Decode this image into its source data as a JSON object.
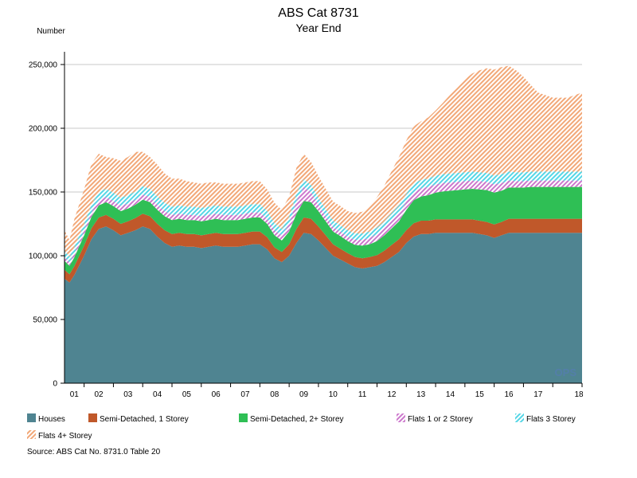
{
  "chart_data": {
    "type": "area",
    "stacked": true,
    "title": "ABS Cat 8731",
    "subtitle": "Year End",
    "ylabel": "Number",
    "ylim": [
      0,
      260000
    ],
    "yticks": [
      0,
      50000,
      100000,
      150000,
      200000,
      250000
    ],
    "ytick_labels": [
      "0",
      "50,000",
      "100,000",
      "150,000",
      "200,000",
      "250,000"
    ],
    "xlim": [
      2000.33,
      2018.0
    ],
    "xtick_labels": [
      "01",
      "02",
      "03",
      "04",
      "05",
      "06",
      "07",
      "08",
      "09",
      "10",
      "11",
      "12",
      "13",
      "14",
      "15",
      "16",
      "17",
      "18"
    ],
    "grid": true,
    "legend_position": "bottom",
    "source": "Source: ABS Cat No. 8731.0 Table 20",
    "watermark": "OPS",
    "x": [
      2000.33,
      2000.5,
      2000.67,
      2001.0,
      2001.25,
      2001.5,
      2001.75,
      2002.0,
      2002.25,
      2002.5,
      2002.75,
      2003.0,
      2003.25,
      2003.5,
      2003.75,
      2004.0,
      2004.25,
      2004.5,
      2004.75,
      2005.0,
      2005.25,
      2005.5,
      2005.75,
      2006.0,
      2006.25,
      2006.5,
      2006.75,
      2007.0,
      2007.25,
      2007.5,
      2007.75,
      2008.0,
      2008.25,
      2008.5,
      2008.75,
      2009.0,
      2009.25,
      2009.5,
      2009.75,
      2010.0,
      2010.25,
      2010.5,
      2010.75,
      2011.0,
      2011.25,
      2011.5,
      2011.75,
      2012.0,
      2012.25,
      2012.5,
      2012.75,
      2013.0,
      2013.25,
      2013.5,
      2013.75,
      2014.0,
      2014.25,
      2014.5,
      2014.75,
      2015.0,
      2015.25,
      2015.5,
      2015.75,
      2016.0,
      2016.25,
      2016.5,
      2016.75,
      2017.0,
      2017.25,
      2017.5,
      2017.75,
      2018.0
    ],
    "series": [
      {
        "name": "Houses",
        "color": "#4f8491",
        "pattern": "solid",
        "values": [
          82000,
          79000,
          85000,
          100000,
          113000,
          121000,
          123000,
          120000,
          116000,
          118000,
          120000,
          123000,
          121000,
          115000,
          110000,
          107000,
          108000,
          107000,
          107000,
          106000,
          107000,
          108000,
          107000,
          107000,
          107000,
          108000,
          109000,
          109000,
          105000,
          98000,
          95000,
          100000,
          110000,
          118000,
          117000,
          112000,
          106000,
          100000,
          97000,
          94000,
          91000,
          90000,
          91000,
          92000,
          95000,
          99000,
          103000,
          110000,
          115000,
          117000,
          117000,
          118000,
          118000,
          118000,
          118000,
          118000,
          118000,
          117000,
          116000,
          114000,
          116000,
          118000,
          118000,
          118000,
          118000,
          118000,
          118000,
          118000,
          118000,
          118000,
          118000,
          118000
        ]
      },
      {
        "name": "Semi-Detached, 1 Storey",
        "color": "#c0582a",
        "pattern": "solid",
        "values": [
          7000,
          6500,
          7000,
          8000,
          8500,
          9000,
          9000,
          9000,
          9000,
          9000,
          9500,
          10000,
          10000,
          10000,
          10000,
          10000,
          10000,
          10000,
          10000,
          10000,
          10000,
          10000,
          10000,
          10000,
          10000,
          10000,
          10000,
          10000,
          9500,
          8500,
          8000,
          9000,
          11000,
          12000,
          12000,
          11000,
          10000,
          9000,
          8500,
          8000,
          8000,
          8000,
          8000,
          8500,
          9000,
          9500,
          10000,
          10000,
          10500,
          10500,
          10500,
          10500,
          10500,
          10500,
          10500,
          10500,
          10500,
          10500,
          10500,
          10500,
          10500,
          11000,
          11000,
          11000,
          11000,
          11000,
          11000,
          11000,
          11000,
          11000,
          11000,
          11000
        ]
      },
      {
        "name": "Semi-Detached, 2+ Storey",
        "color": "#2fbf55",
        "pattern": "solid",
        "values": [
          7000,
          6500,
          7000,
          8000,
          9000,
          9500,
          10000,
          10000,
          10000,
          10000,
          10500,
          11000,
          11000,
          11000,
          11000,
          11000,
          11000,
          11000,
          11000,
          11000,
          11000,
          11000,
          11000,
          11000,
          11000,
          11000,
          11000,
          11000,
          10500,
          9500,
          9000,
          10000,
          12000,
          13000,
          13000,
          12000,
          11000,
          10000,
          10000,
          9500,
          9500,
          10000,
          10000,
          11000,
          12000,
          13000,
          14000,
          16000,
          18000,
          19000,
          20000,
          21000,
          22000,
          22500,
          23000,
          23500,
          24000,
          24500,
          25000,
          25000,
          24500,
          24500,
          24500,
          24500,
          25000,
          25000,
          25000,
          25000,
          25000,
          25000,
          25000,
          25000
        ]
      },
      {
        "name": "Flats 1 or 2 Storey",
        "color": "#cc77cc",
        "pattern": "hatch",
        "values": [
          3000,
          2800,
          3000,
          3500,
          3500,
          4000,
          4000,
          4000,
          4000,
          4000,
          4000,
          4000,
          4000,
          4000,
          4000,
          4000,
          4000,
          4000,
          4000,
          4000,
          4000,
          4000,
          4000,
          4000,
          4000,
          4000,
          4000,
          4000,
          4000,
          4000,
          4000,
          6000,
          10000,
          11000,
          8000,
          5000,
          4000,
          3500,
          3500,
          3500,
          4000,
          4500,
          5000,
          5500,
          6000,
          6500,
          6500,
          6500,
          6500,
          6500,
          6500,
          6500,
          6500,
          6500,
          6500,
          6500,
          6500,
          6500,
          6500,
          6500,
          6000,
          5500,
          5000,
          5000,
          5000,
          5000,
          5000,
          5000,
          5000,
          5000,
          5000,
          5000
        ]
      },
      {
        "name": "Flats 3 Storey",
        "color": "#55d6e6",
        "pattern": "hatch",
        "values": [
          5000,
          4500,
          5000,
          5500,
          6000,
          6500,
          6500,
          6500,
          6500,
          6500,
          6500,
          6500,
          6500,
          6500,
          6500,
          6500,
          6500,
          6500,
          6500,
          6500,
          6500,
          6500,
          6500,
          6500,
          6500,
          6500,
          6500,
          6500,
          6000,
          5500,
          5000,
          5500,
          6000,
          6000,
          5500,
          5500,
          5500,
          5000,
          5000,
          5000,
          5000,
          5000,
          5000,
          5000,
          5000,
          5500,
          6000,
          6000,
          6500,
          6500,
          6500,
          7000,
          7000,
          7000,
          7000,
          7000,
          7000,
          7000,
          7000,
          7000,
          7000,
          7000,
          7000,
          7000,
          7000,
          7000,
          7000,
          7000,
          7000,
          7000,
          7000,
          7000
        ]
      },
      {
        "name": "Flats 4+ Storey",
        "color": "#f2a878",
        "pattern": "hatch",
        "values": [
          16000,
          13000,
          22000,
          27000,
          32000,
          30000,
          25000,
          27000,
          29000,
          30000,
          31000,
          27000,
          25000,
          25000,
          23000,
          22000,
          21000,
          20000,
          19000,
          19000,
          19000,
          18000,
          18000,
          18000,
          18000,
          18000,
          18000,
          18000,
          17000,
          16000,
          15000,
          16000,
          20000,
          20000,
          18000,
          17000,
          16000,
          15000,
          15000,
          15000,
          16000,
          17000,
          20000,
          24000,
          28000,
          33000,
          38000,
          42000,
          45000,
          46000,
          48000,
          51000,
          56000,
          62000,
          67000,
          73000,
          77000,
          80000,
          82000,
          83000,
          84000,
          83000,
          80000,
          75000,
          68000,
          62000,
          60000,
          58000,
          58000,
          58000,
          60000,
          62000
        ]
      }
    ]
  }
}
